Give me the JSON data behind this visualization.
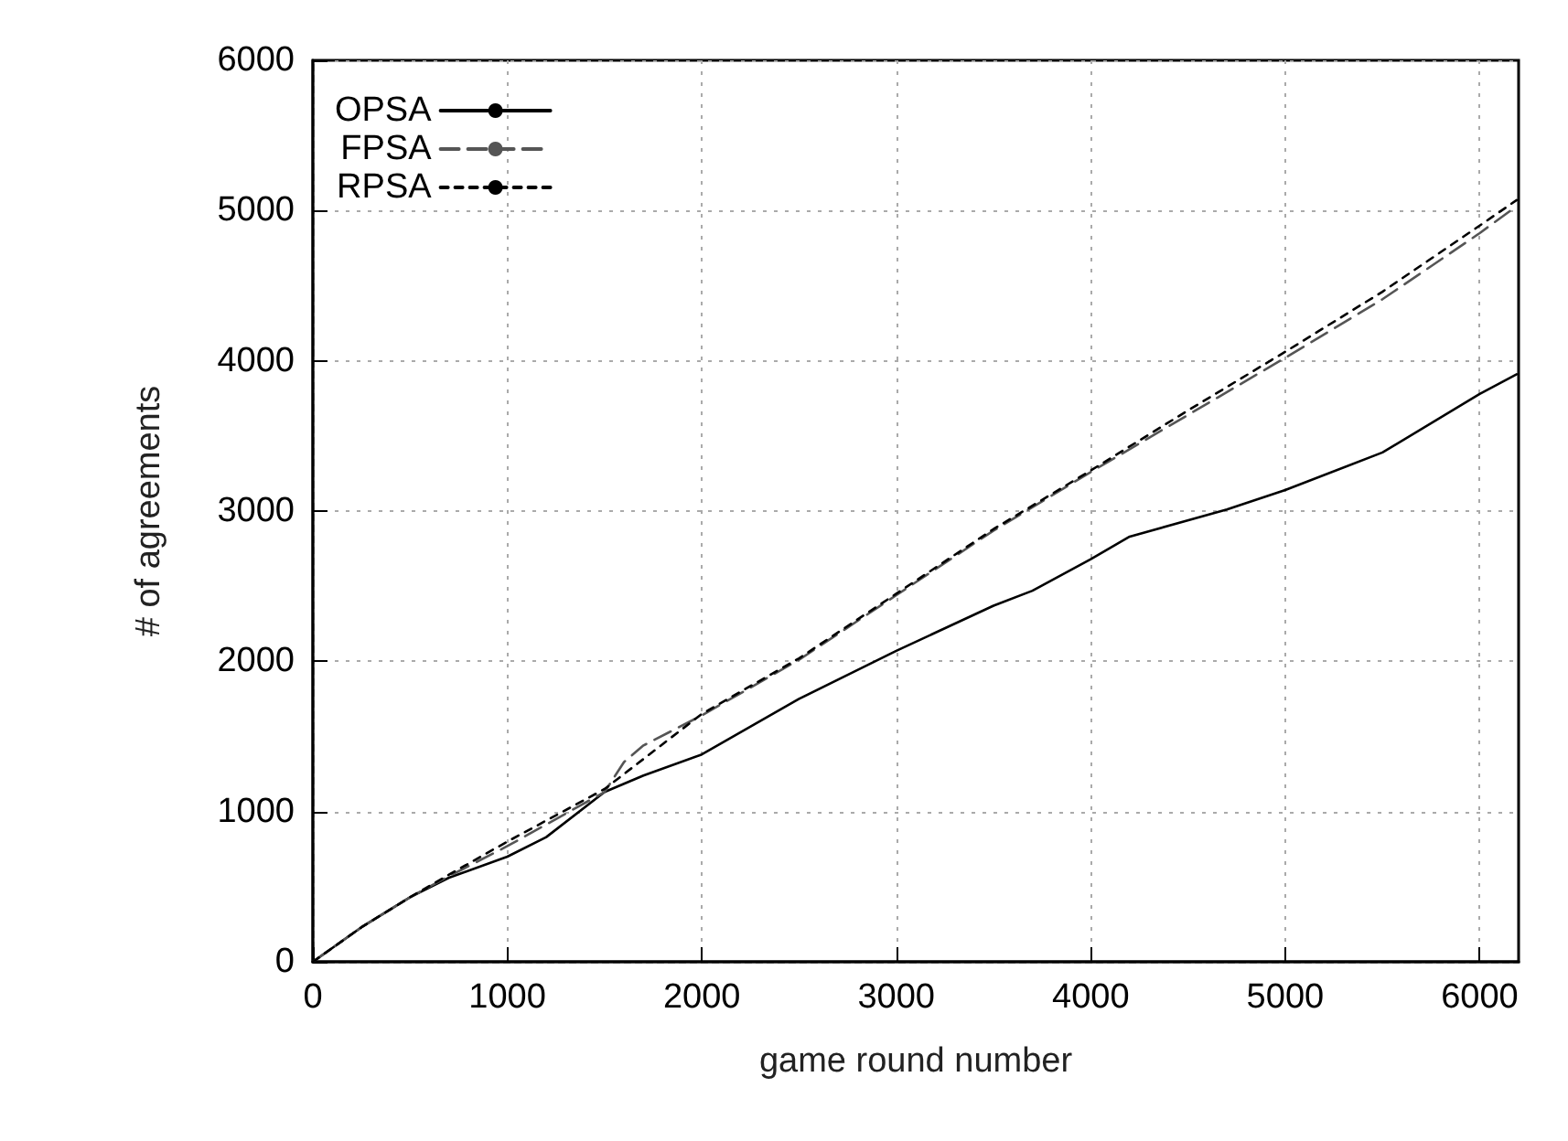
{
  "chart_data": {
    "type": "line",
    "xlabel": "game round number",
    "ylabel": "# of agreements",
    "xlim": [
      0,
      6200
    ],
    "ylim": [
      0,
      6000
    ],
    "xticks": [
      0,
      1000,
      2000,
      3000,
      4000,
      5000,
      6000
    ],
    "yticks": [
      0,
      1000,
      2000,
      3000,
      4000,
      5000,
      6000
    ],
    "grid": true,
    "legend": "top left",
    "marker": "none",
    "series": [
      {
        "name": "OPSA",
        "color": "#000000",
        "line_style": "solid",
        "x": [
          0,
          250,
          500,
          700,
          1000,
          1200,
          1500,
          1700,
          2000,
          2500,
          3000,
          3500,
          3700,
          4000,
          4200,
          4700,
          5000,
          5500,
          6000,
          6190
        ],
        "values": [
          0,
          230,
          430,
          560,
          700,
          830,
          1130,
          1240,
          1380,
          1750,
          2070,
          2370,
          2470,
          2680,
          2830,
          3010,
          3140,
          3390,
          3780,
          3910
        ]
      },
      {
        "name": "FPSA",
        "color": "#555555",
        "line_style": "dashed",
        "x": [
          0,
          250,
          500,
          700,
          1000,
          1500,
          1600,
          1700,
          2000,
          2500,
          3000,
          3500,
          4000,
          4500,
          5000,
          5500,
          6000,
          6190
        ],
        "values": [
          0,
          230,
          430,
          570,
          770,
          1130,
          1330,
          1440,
          1640,
          2010,
          2440,
          2870,
          3260,
          3640,
          4020,
          4410,
          4850,
          5030
        ]
      },
      {
        "name": "RPSA",
        "color": "#000000",
        "line_style": "dotted",
        "x": [
          0,
          250,
          500,
          700,
          1000,
          1500,
          2000,
          2500,
          3000,
          3500,
          4000,
          4500,
          5000,
          5500,
          6000,
          6190
        ],
        "values": [
          0,
          230,
          430,
          580,
          800,
          1150,
          1650,
          2020,
          2450,
          2880,
          3270,
          3670,
          4060,
          4460,
          4900,
          5070
        ]
      }
    ]
  }
}
